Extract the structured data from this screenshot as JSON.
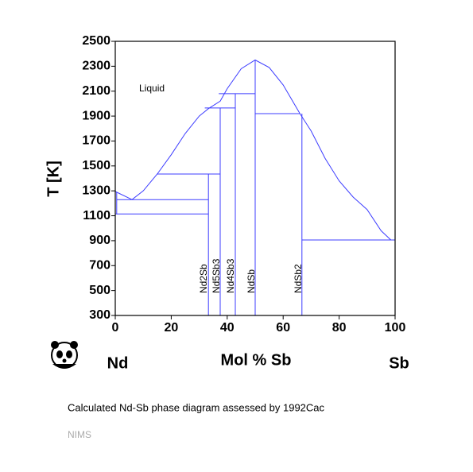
{
  "chart_data": {
    "type": "line",
    "xlabel": "Mol % Sb",
    "ylabel": "T [K]",
    "left_element": "Nd",
    "right_element": "Sb",
    "region_label": "Liquid",
    "phase_labels": [
      "Nd2Sb",
      "Nd5Sb3",
      "Nd4Sb3",
      "NdSb",
      "NdSb2"
    ],
    "caption": "Calculated Nd-Sb phase diagram assessed by 1992Cac",
    "source": "NIMS",
    "xlim": [
      0,
      100
    ],
    "ylim": [
      300,
      2500
    ],
    "xticks": [
      0,
      20,
      40,
      60,
      80,
      100
    ],
    "yticks": [
      300,
      500,
      700,
      900,
      1100,
      1300,
      1500,
      1700,
      1900,
      2100,
      2300,
      2500
    ],
    "grid": false,
    "series": [
      {
        "color": "#3c3cff",
        "x": [
          0,
          6,
          10,
          15,
          20,
          25,
          30,
          33.3,
          37.5,
          40,
          45,
          50,
          55,
          60,
          66,
          70,
          75,
          80,
          85,
          90,
          95,
          98.5
        ],
        "values": [
          1295,
          1230,
          1300,
          1435,
          1590,
          1760,
          1900,
          1960,
          2020,
          2120,
          2280,
          2350,
          2290,
          2150,
          1920,
          1780,
          1560,
          1380,
          1250,
          1150,
          980,
          906
        ]
      },
      {
        "color": "#3c3cff",
        "x": [
          33.3,
          33.3
        ],
        "values": [
          300,
          1435
        ]
      },
      {
        "color": "#3c3cff",
        "x": [
          37.5,
          37.5
        ],
        "values": [
          300,
          1965
        ]
      },
      {
        "color": "#3c3cff",
        "x": [
          42.9,
          42.9
        ],
        "values": [
          300,
          2080
        ]
      },
      {
        "color": "#3c3cff",
        "x": [
          50,
          50
        ],
        "values": [
          300,
          2350
        ]
      },
      {
        "color": "#3c3cff",
        "x": [
          66.7,
          66.7
        ],
        "values": [
          300,
          1920
        ]
      },
      {
        "color": "#3c3cff",
        "x": [
          15,
          37.5
        ],
        "values": [
          1435,
          1435
        ]
      },
      {
        "color": "#3c3cff",
        "x": [
          32,
          42.9
        ],
        "values": [
          1965,
          1965
        ]
      },
      {
        "color": "#3c3cff",
        "x": [
          37,
          50
        ],
        "values": [
          2080,
          2080
        ]
      },
      {
        "color": "#3c3cff",
        "x": [
          50,
          66
        ],
        "values": [
          1920,
          1920
        ]
      },
      {
        "color": "#3c3cff",
        "x": [
          66.7,
          100
        ],
        "values": [
          906,
          906
        ]
      },
      {
        "color": "#3c3cff",
        "x": [
          0.5,
          33.3
        ],
        "values": [
          1230,
          1230
        ]
      },
      {
        "color": "#3c3cff",
        "x": [
          0,
          33.3
        ],
        "values": [
          1115,
          1115
        ]
      },
      {
        "color": "#3c3cff",
        "x": [
          0.5,
          0.5
        ],
        "values": [
          1115,
          1290
        ]
      }
    ]
  }
}
